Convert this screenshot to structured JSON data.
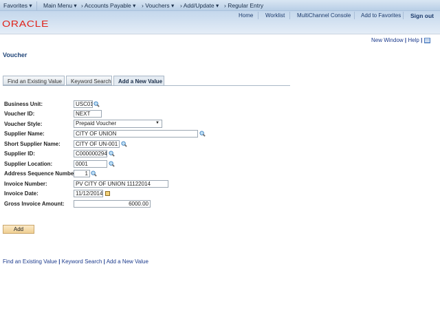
{
  "nav": {
    "favorites": "Favorites",
    "main_menu": "Main Menu",
    "breadcrumb": [
      "Accounts Payable",
      "Vouchers",
      "Add/Update",
      "Regular Entry"
    ]
  },
  "header": {
    "links": [
      "Home",
      "Worklist",
      "MultiChannel Console",
      "Add to Favorites"
    ],
    "sign_out": "Sign out",
    "logo": "ORACLE"
  },
  "utility": {
    "new_window": "New Window",
    "help": "Help"
  },
  "page_title": "Voucher",
  "tabs": [
    "Find an Existing Value",
    "Keyword Search",
    "Add a New Value"
  ],
  "active_tab": 2,
  "fields": {
    "business_unit": {
      "label": "Business Unit:",
      "value": "USC01"
    },
    "voucher_id": {
      "label": "Voucher ID:",
      "value": "NEXT"
    },
    "voucher_style": {
      "label": "Voucher Style:",
      "value": "Prepaid Voucher"
    },
    "supplier_name": {
      "label": "Supplier Name:",
      "value": "CITY OF UNION"
    },
    "short_supplier_name": {
      "label": "Short Supplier Name:",
      "value": "CITY OF UN-001"
    },
    "supplier_id": {
      "label": "Supplier ID:",
      "value": "C000000294"
    },
    "supplier_location": {
      "label": "Supplier Location:",
      "value": "0001"
    },
    "address_seq": {
      "label": "Address Sequence Number:",
      "value": "1"
    },
    "invoice_number": {
      "label": "Invoice Number:",
      "value": "PV CITY OF UNION 11122014"
    },
    "invoice_date": {
      "label": "Invoice Date:",
      "value": "11/12/2014"
    },
    "gross_amount": {
      "label": "Gross Invoice Amount:",
      "value": "6000.00"
    }
  },
  "add_button": "Add",
  "bottom_links": [
    "Find an Existing Value",
    "Keyword Search",
    "Add a New Value"
  ],
  "colors": {
    "oracle_red": "#e0241b",
    "title_blue": "#23477a",
    "button": "#f0cf92"
  }
}
